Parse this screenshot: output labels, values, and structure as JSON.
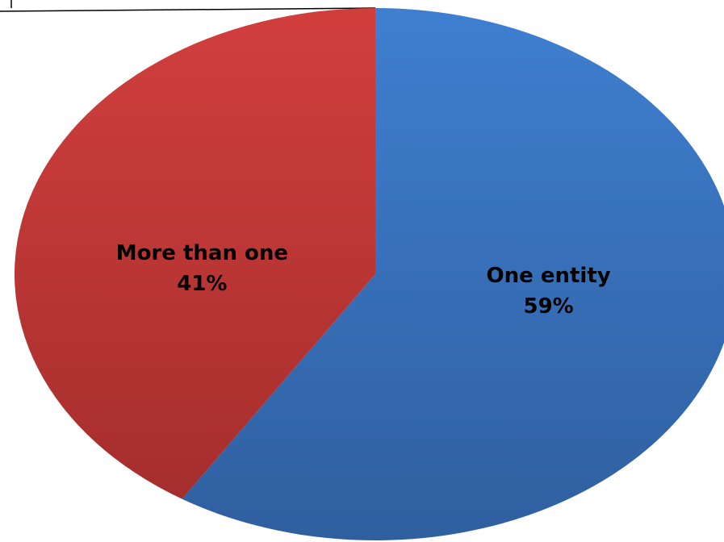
{
  "chart_data": {
    "type": "pie",
    "slices": [
      {
        "label": "One entity",
        "value": 59,
        "value_label": "59%",
        "color": "#3a73bd"
      },
      {
        "label": "More than one",
        "value": 41,
        "value_label": "41%",
        "color": "#c0393a"
      }
    ],
    "colors_gradient": {
      "One entity": [
        "#3f7fd0",
        "#2f5f9f"
      ],
      "More than one": [
        "#d13f3d",
        "#a52e2d"
      ]
    },
    "start_angle_deg": 0,
    "direction": "clockwise",
    "legend": "none"
  }
}
